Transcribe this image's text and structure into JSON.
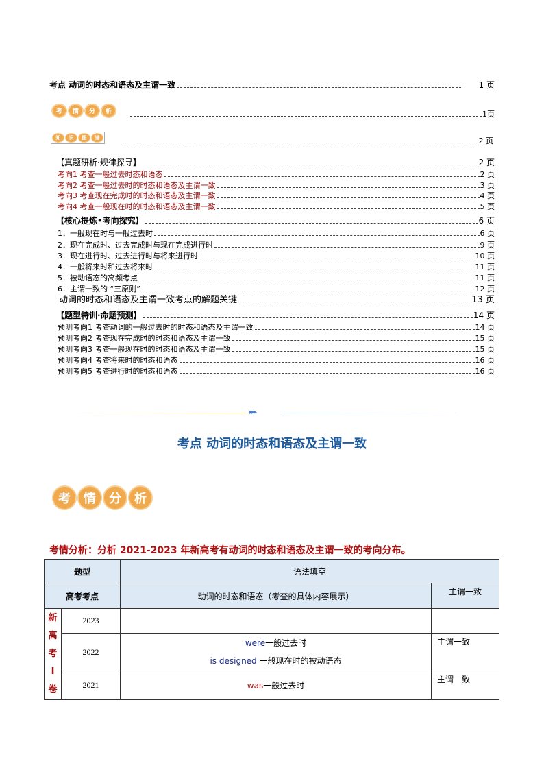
{
  "toc": {
    "main": {
      "label": "考点   动词的时态和语态及主谓一致",
      "page": "1 页"
    },
    "kqfx": {
      "badge": [
        "考",
        "情",
        "分",
        "析"
      ],
      "page": "1页"
    },
    "zstp": {
      "badge": [
        "知",
        "识",
        "图",
        "谱"
      ],
      "page": "2 页"
    },
    "rows": [
      {
        "label": "【真题研析·规律探寻】",
        "page": "2 页",
        "style": ""
      },
      {
        "label": "考向1  考查一般过去时态和语态",
        "page": "2 页",
        "style": "red"
      },
      {
        "label": "考向2  考查一般过去时的时态和语态及主谓一致",
        "page": "3 页",
        "style": "red"
      },
      {
        "label": "考向3  考查现在完成时的时态和语态及主谓一致",
        "page": "4 页",
        "style": "red"
      },
      {
        "label": "考向4  考查一般现在时的时态和语态及主谓一致",
        "page": "5 页",
        "style": "red"
      },
      {
        "label": "【核心提炼•考向探究】",
        "page": "6 页",
        "style": "bold"
      },
      {
        "label": "1．一般现在时与一般过去时",
        "page": "6 页",
        "style": ""
      },
      {
        "label": "2．现在完成时、过去完成时与现在完成进行时",
        "page": "9 页",
        "style": ""
      },
      {
        "label": "3．现在进行时、过去进行时与将来进行时",
        "page": "10 页",
        "style": ""
      },
      {
        "label": "4．一般将来时和过去将来时",
        "page": "11 页",
        "style": ""
      },
      {
        "label": "5．被动语态的高频考点",
        "page": "11 页",
        "style": ""
      },
      {
        "label": "6．主谓一致的 “三原则”",
        "page": "12 页",
        "style": ""
      },
      {
        "label": "动词的时态和语态及主谓一致考点的解题关键",
        "page": "13 页",
        "style": "big"
      },
      {
        "label": "【题型特训·命题预测】",
        "page": "14 页",
        "style": "bold"
      },
      {
        "label": "预测考向1   考查动词的一般过去时的时态和语态及主谓一致",
        "page": "14 页",
        "style": ""
      },
      {
        "label": "预测考向2   考查现在完成时的时态和语态及主谓一致",
        "page": "15 页",
        "style": ""
      },
      {
        "label": "预测考向3   考查一般现在时的时态和语态及主谓一致",
        "page": "15 页",
        "style": ""
      },
      {
        "label": "预测考向4   考查将来时的时态和语态",
        "page": "16 页",
        "style": ""
      },
      {
        "label": "预测考向5   考查进行时的时态和语态",
        "page": "16 页",
        "style": ""
      }
    ]
  },
  "divider_arrows": "▸▸▸",
  "section_title": "考点 动词的时态和语态及主谓一致",
  "section_badge": [
    "考",
    "情",
    "分",
    "析"
  ],
  "intro": "考情分析：分析 2021-2023 年新高考有动词的时态和语态及主谓一致的考向分布。",
  "table": {
    "h_type": "题型",
    "h_type_val": "语法填空",
    "h_point": "高考考点",
    "h_tense": "动词的时态和语态（考查的具体内容展示）",
    "h_agree": "主谓一致",
    "group": "新\n高\n考\nI\n卷",
    "rows": [
      {
        "year": "2023",
        "lines": [],
        "agree": ""
      },
      {
        "year": "2022",
        "lines": [
          {
            "word": "were",
            "desc": "一般过去时"
          },
          {
            "word": "is designed ",
            "desc": "一般现在时的被动语态"
          }
        ],
        "agree": "主谓一致"
      },
      {
        "year": "2021",
        "lines": [
          {
            "word": "was",
            "desc": "一般过去时"
          }
        ],
        "agree": "主谓一致"
      }
    ]
  },
  "colors": {
    "red": "#a01010",
    "blue_title": "#1d5a9c",
    "header_bg": "#dde9f5",
    "badge": "#f1a94e"
  }
}
